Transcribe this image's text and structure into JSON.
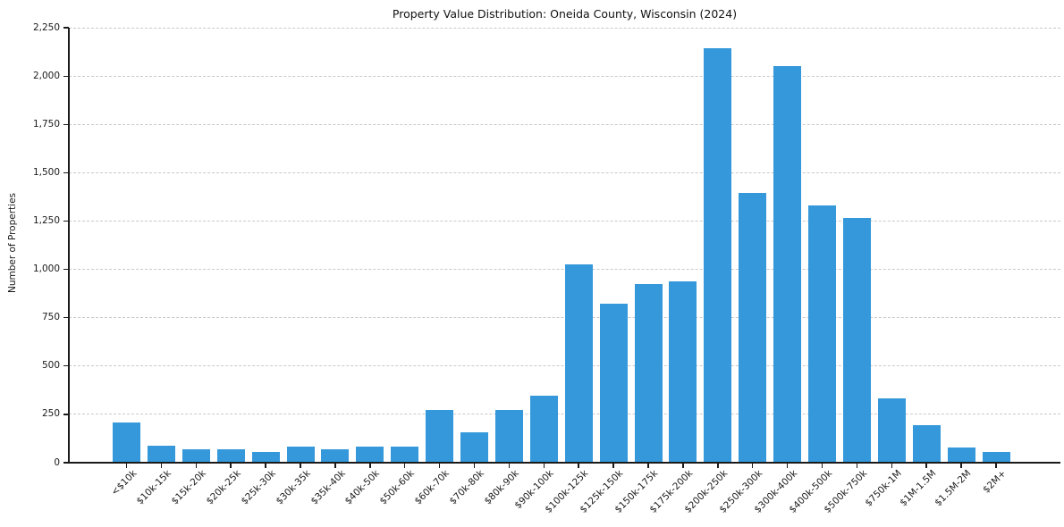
{
  "chart_data": {
    "type": "bar",
    "title": "Property Value Distribution: Oneida County, Wisconsin (2024)",
    "xlabel": "",
    "ylabel": "Number of Properties",
    "categories": [
      "<$10k",
      "$10k-15k",
      "$15k-20k",
      "$20k-25k",
      "$25k-30k",
      "$30k-35k",
      "$35k-40k",
      "$40k-50k",
      "$50k-60k",
      "$60k-70k",
      "$70k-80k",
      "$80k-90k",
      "$90k-100k",
      "$100k-125k",
      "$125k-150k",
      "$150k-175k",
      "$175k-200k",
      "$200k-250k",
      "$250k-300k",
      "$300k-400k",
      "$400k-500k",
      "$500k-750k",
      "$750k-1M",
      "$1M-1.5M",
      "$1.5M-2M",
      "$2M+"
    ],
    "values": [
      210,
      90,
      70,
      70,
      55,
      82,
      70,
      84,
      84,
      272,
      158,
      272,
      348,
      1026,
      822,
      922,
      940,
      2145,
      1396,
      2050,
      1330,
      1265,
      333,
      193,
      80,
      55
    ],
    "ylim": [
      0,
      2250
    ],
    "yticks": [
      0,
      250,
      500,
      750,
      1000,
      1250,
      1500,
      1750,
      2000,
      2250
    ],
    "ytick_labels": [
      "0",
      "250",
      "500",
      "750",
      "1,000",
      "1,250",
      "1,500",
      "1,750",
      "2,000",
      "2,250"
    ],
    "xtick_rotation": 45,
    "grid": "horizontal-dashed",
    "legend": "none",
    "colors": {
      "bar": "#3498db",
      "gridline": "#c9c9c9",
      "spine": "#1a1a1a",
      "text": "#1a1a1a"
    }
  }
}
